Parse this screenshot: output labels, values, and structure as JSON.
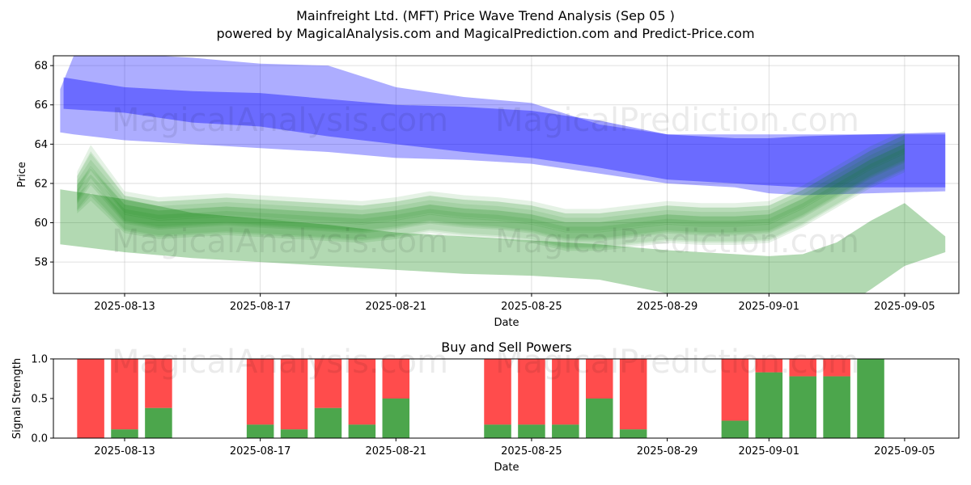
{
  "title_line1": "Mainfreight Ltd. (MFT) Price Wave Trend Analysis (Sep 05 )",
  "title_line2": "powered by MagicalAnalysis.com and MagicalPrediction.com and Predict-Price.com",
  "watermarks": [
    "MagicalAnalysis.com",
    "MagicalPrediction.com"
  ],
  "colors": {
    "sell": "#ff0000",
    "buy": "#008000",
    "blue_band": "#0000ff",
    "green_band": "#008000"
  },
  "chart_data": [
    {
      "type": "area",
      "title": "",
      "xlabel": "Date",
      "ylabel": "Price",
      "ylim": [
        56.4,
        68.5
      ],
      "yticks": [
        58,
        60,
        62,
        64,
        66,
        68
      ],
      "xlim_day": [
        -2.1,
        24.6
      ],
      "xticks": [
        {
          "day": 0,
          "label": "2025-08-13"
        },
        {
          "day": 4,
          "label": "2025-08-17"
        },
        {
          "day": 8,
          "label": "2025-08-21"
        },
        {
          "day": 12,
          "label": "2025-08-25"
        },
        {
          "day": 16,
          "label": "2025-08-29"
        },
        {
          "day": 19,
          "label": "2025-09-01"
        },
        {
          "day": 23,
          "label": "2025-09-05"
        }
      ],
      "grid": true,
      "series": [
        {
          "name": "blue-wide-band",
          "color": "#0000ff",
          "x": [
            -1.9,
            -1.5,
            0,
            2,
            4,
            6,
            8,
            10,
            12,
            14,
            16,
            18,
            19,
            20,
            22,
            24.2
          ],
          "upper": [
            66.8,
            68.5,
            68.6,
            68.4,
            68.1,
            68.0,
            66.9,
            66.4,
            66.1,
            65.0,
            64.5,
            64.5,
            64.5,
            64.5,
            64.5,
            64.5
          ],
          "lower": [
            64.6,
            64.5,
            64.2,
            64.0,
            63.8,
            63.6,
            63.3,
            63.2,
            63.0,
            62.5,
            62.0,
            61.8,
            61.5,
            61.4,
            61.5,
            61.6
          ]
        },
        {
          "name": "blue-core-band",
          "color": "#0000ff",
          "x": [
            -1.8,
            0,
            2,
            4,
            6,
            8,
            10,
            12,
            14,
            16,
            18,
            19,
            20,
            22,
            24.2
          ],
          "upper": [
            67.4,
            66.9,
            66.7,
            66.6,
            66.3,
            66.0,
            65.9,
            65.7,
            65.2,
            64.5,
            64.3,
            64.3,
            64.4,
            64.5,
            64.6
          ],
          "lower": [
            65.8,
            65.6,
            65.1,
            64.9,
            64.4,
            64.0,
            63.6,
            63.3,
            62.8,
            62.2,
            62.0,
            61.9,
            61.8,
            61.8,
            61.8
          ]
        },
        {
          "name": "green-lower-band",
          "color": "#008000",
          "x": [
            -1.9,
            0,
            2,
            4,
            6,
            8,
            10,
            12,
            14,
            16,
            18,
            19,
            20,
            21,
            22,
            23,
            24.2
          ],
          "upper": [
            61.7,
            61.2,
            60.5,
            60.2,
            59.9,
            59.5,
            59.3,
            59.1,
            58.9,
            58.6,
            58.4,
            58.3,
            58.4,
            59.0,
            60.1,
            61.0,
            59.3
          ],
          "lower": [
            58.9,
            58.5,
            58.2,
            58.0,
            57.8,
            57.6,
            57.4,
            57.3,
            57.1,
            56.4,
            56.0,
            55.5,
            55.2,
            55.5,
            56.6,
            57.8,
            58.5
          ]
        },
        {
          "name": "green-wave-bundle",
          "color": "#008000",
          "x": [
            -1.4,
            -1.0,
            0,
            1,
            2,
            3,
            4,
            5,
            6,
            7,
            8,
            9,
            10,
            11,
            12,
            13,
            14,
            15,
            16,
            17,
            18,
            19,
            20,
            21,
            22,
            23
          ],
          "center": [
            61.5,
            62.5,
            60.5,
            60.2,
            60.3,
            60.4,
            60.3,
            60.2,
            60.1,
            60.0,
            60.2,
            60.5,
            60.3,
            60.2,
            60.0,
            59.6,
            59.6,
            59.8,
            60.0,
            59.9,
            59.9,
            60.0,
            60.8,
            61.8,
            62.8,
            63.6
          ],
          "half_width": 0.7
        }
      ]
    },
    {
      "type": "bar",
      "title": "Buy and Sell Powers",
      "xlabel": "Date",
      "ylabel": "Signal Strength",
      "ylim": [
        0,
        1.0
      ],
      "yticks": [
        0.0,
        0.5,
        1.0
      ],
      "xlim_day": [
        -2.1,
        24.6
      ],
      "xticks": [
        {
          "day": 0,
          "label": "2025-08-13"
        },
        {
          "day": 4,
          "label": "2025-08-17"
        },
        {
          "day": 8,
          "label": "2025-08-21"
        },
        {
          "day": 12,
          "label": "2025-08-25"
        },
        {
          "day": 16,
          "label": "2025-08-29"
        },
        {
          "day": 19,
          "label": "2025-09-01"
        },
        {
          "day": 23,
          "label": "2025-09-05"
        }
      ],
      "grid": false,
      "series": [
        {
          "name": "Buy",
          "color": "#008000"
        },
        {
          "name": "Sell",
          "color": "#ff0000"
        }
      ],
      "bars": [
        {
          "day": -1,
          "buy": 0.0
        },
        {
          "day": 0,
          "buy": 0.11
        },
        {
          "day": 1,
          "buy": 0.38
        },
        {
          "day": 4,
          "buy": 0.17
        },
        {
          "day": 5,
          "buy": 0.11
        },
        {
          "day": 6,
          "buy": 0.38
        },
        {
          "day": 7,
          "buy": 0.17
        },
        {
          "day": 8,
          "buy": 0.5
        },
        {
          "day": 11,
          "buy": 0.17
        },
        {
          "day": 12,
          "buy": 0.17
        },
        {
          "day": 13,
          "buy": 0.17
        },
        {
          "day": 14,
          "buy": 0.5
        },
        {
          "day": 15,
          "buy": 0.11
        },
        {
          "day": 18,
          "buy": 0.22
        },
        {
          "day": 19,
          "buy": 0.83
        },
        {
          "day": 20,
          "buy": 0.78
        },
        {
          "day": 21,
          "buy": 0.78
        },
        {
          "day": 22,
          "buy": 1.0
        }
      ]
    }
  ]
}
